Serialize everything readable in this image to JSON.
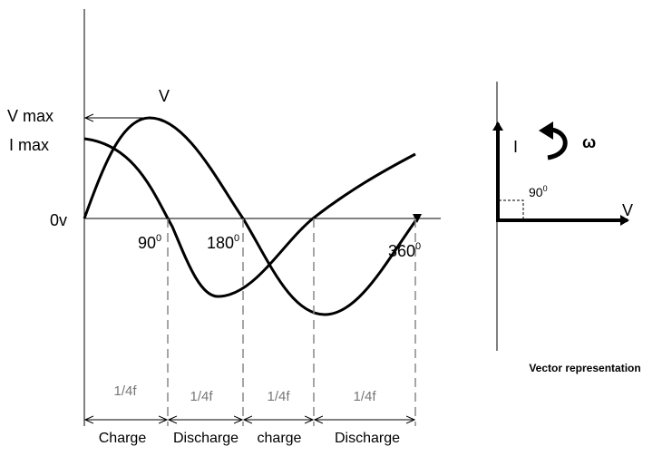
{
  "waveform": {
    "voltage_curve_label": "V",
    "y_labels": [
      "V max",
      "I max",
      "0v"
    ],
    "angle_labels": [
      {
        "value": "90",
        "sup": "0"
      },
      {
        "value": "180",
        "sup": "0"
      },
      {
        "value": "360",
        "sup": "0"
      }
    ],
    "intervals": [
      {
        "duration": "1/4f",
        "phase": "Charge"
      },
      {
        "duration": "1/4f",
        "phase": "Discharge"
      },
      {
        "duration": "1/4f",
        "phase": "charge"
      },
      {
        "duration": "1/4f",
        "phase": "Discharge"
      }
    ]
  },
  "vector": {
    "current_label": "I",
    "omega": "ω",
    "angle": {
      "value": "90",
      "sup": "0"
    },
    "voltage_label": "V",
    "caption": "Vector representation"
  }
}
